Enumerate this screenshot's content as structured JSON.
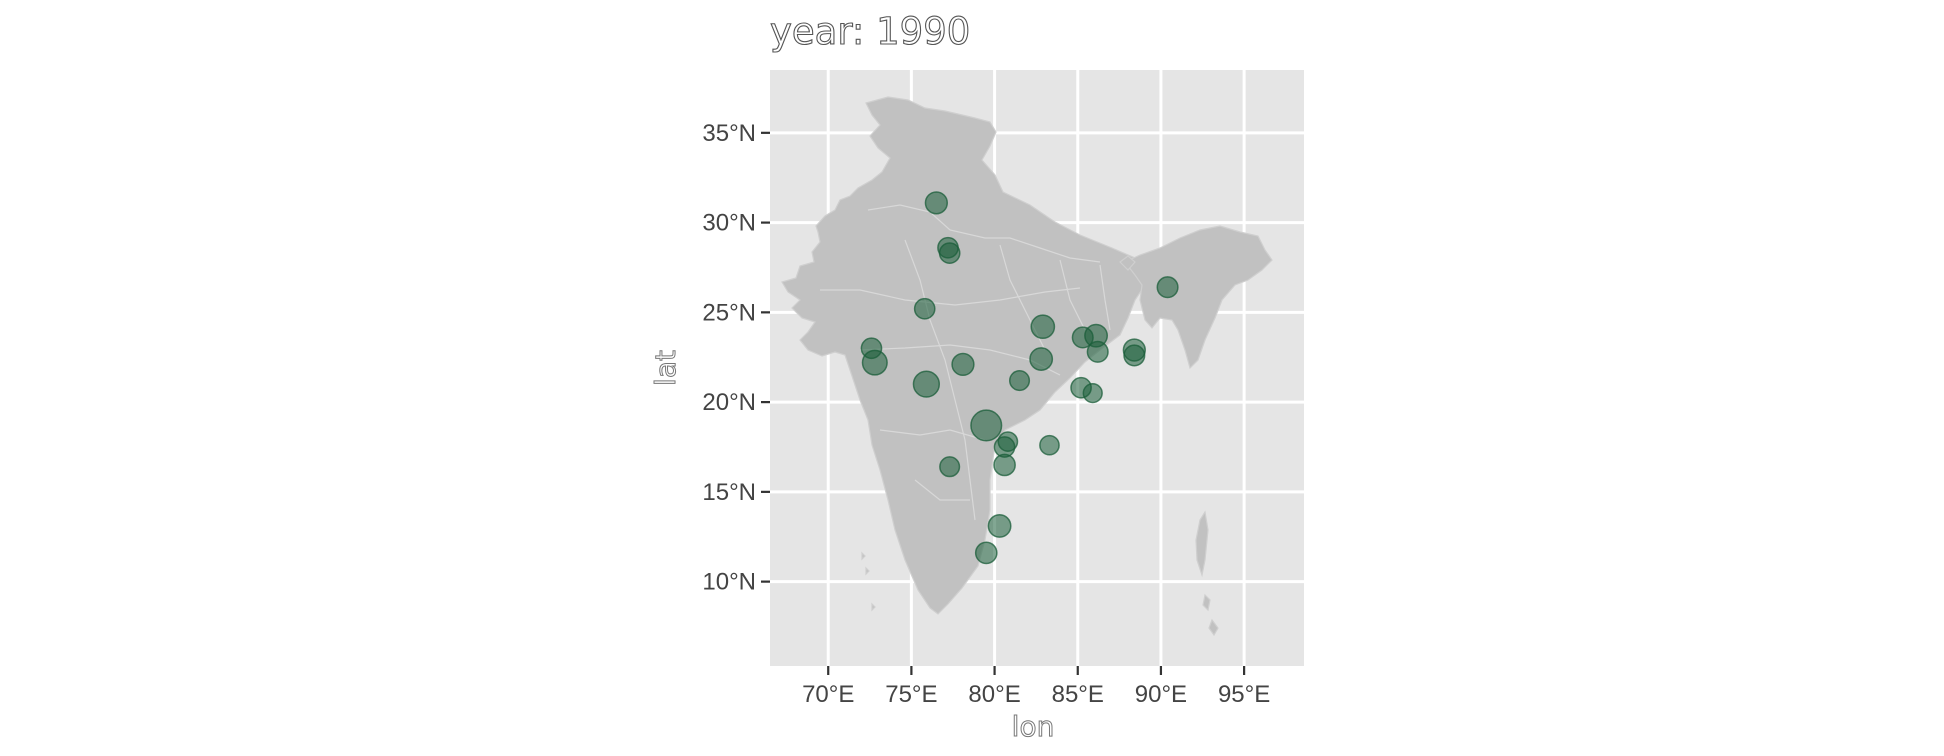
{
  "title": "year: 1990",
  "chart_data": {
    "type": "scatter",
    "title": "year: 1990",
    "xlabel": "lon",
    "ylabel": "lat",
    "xlim": [
      66.5,
      98.6
    ],
    "ylim": [
      5.3,
      38.5
    ],
    "x_ticks": [
      70,
      75,
      80,
      85,
      90,
      95
    ],
    "x_tick_labels": [
      "70°E",
      "75°E",
      "80°E",
      "85°E",
      "90°E",
      "95°E"
    ],
    "y_ticks": [
      10,
      15,
      20,
      25,
      30,
      35
    ],
    "y_tick_labels": [
      "10°N",
      "15°N",
      "20°N",
      "25°N",
      "30°N",
      "35°N"
    ],
    "grid": true,
    "panel_color": "#e5e5e5",
    "land_color": "#c1c1c1",
    "point_color": "#1b5e3a",
    "point_alpha": 0.55,
    "points": [
      {
        "lon": 76.5,
        "lat": 31.1,
        "size": 2
      },
      {
        "lon": 77.2,
        "lat": 28.6,
        "size": 1.5
      },
      {
        "lon": 77.3,
        "lat": 28.3,
        "size": 1.5
      },
      {
        "lon": 75.8,
        "lat": 25.2,
        "size": 1.5
      },
      {
        "lon": 72.6,
        "lat": 23.0,
        "size": 1.5
      },
      {
        "lon": 72.8,
        "lat": 22.2,
        "size": 3
      },
      {
        "lon": 75.9,
        "lat": 21.0,
        "size": 3.5
      },
      {
        "lon": 78.1,
        "lat": 22.1,
        "size": 2
      },
      {
        "lon": 81.5,
        "lat": 21.2,
        "size": 1.3
      },
      {
        "lon": 79.5,
        "lat": 18.7,
        "size": 6
      },
      {
        "lon": 80.8,
        "lat": 17.8,
        "size": 1.2
      },
      {
        "lon": 80.6,
        "lat": 17.5,
        "size": 1.5
      },
      {
        "lon": 83.3,
        "lat": 17.6,
        "size": 1.2
      },
      {
        "lon": 80.6,
        "lat": 16.5,
        "size": 1.8
      },
      {
        "lon": 77.3,
        "lat": 16.4,
        "size": 1.3
      },
      {
        "lon": 80.3,
        "lat": 13.1,
        "size": 2.2
      },
      {
        "lon": 79.5,
        "lat": 11.6,
        "size": 1.8
      },
      {
        "lon": 82.9,
        "lat": 24.2,
        "size": 2.5
      },
      {
        "lon": 82.8,
        "lat": 22.4,
        "size": 2.2
      },
      {
        "lon": 85.3,
        "lat": 23.6,
        "size": 1.6
      },
      {
        "lon": 86.1,
        "lat": 23.7,
        "size": 2.2
      },
      {
        "lon": 86.2,
        "lat": 22.8,
        "size": 1.6
      },
      {
        "lon": 85.2,
        "lat": 20.8,
        "size": 1.5
      },
      {
        "lon": 85.9,
        "lat": 20.5,
        "size": 1.1
      },
      {
        "lon": 88.4,
        "lat": 22.9,
        "size": 2
      },
      {
        "lon": 88.4,
        "lat": 22.6,
        "size": 1.6
      },
      {
        "lon": 90.4,
        "lat": 26.4,
        "size": 1.6
      }
    ]
  }
}
